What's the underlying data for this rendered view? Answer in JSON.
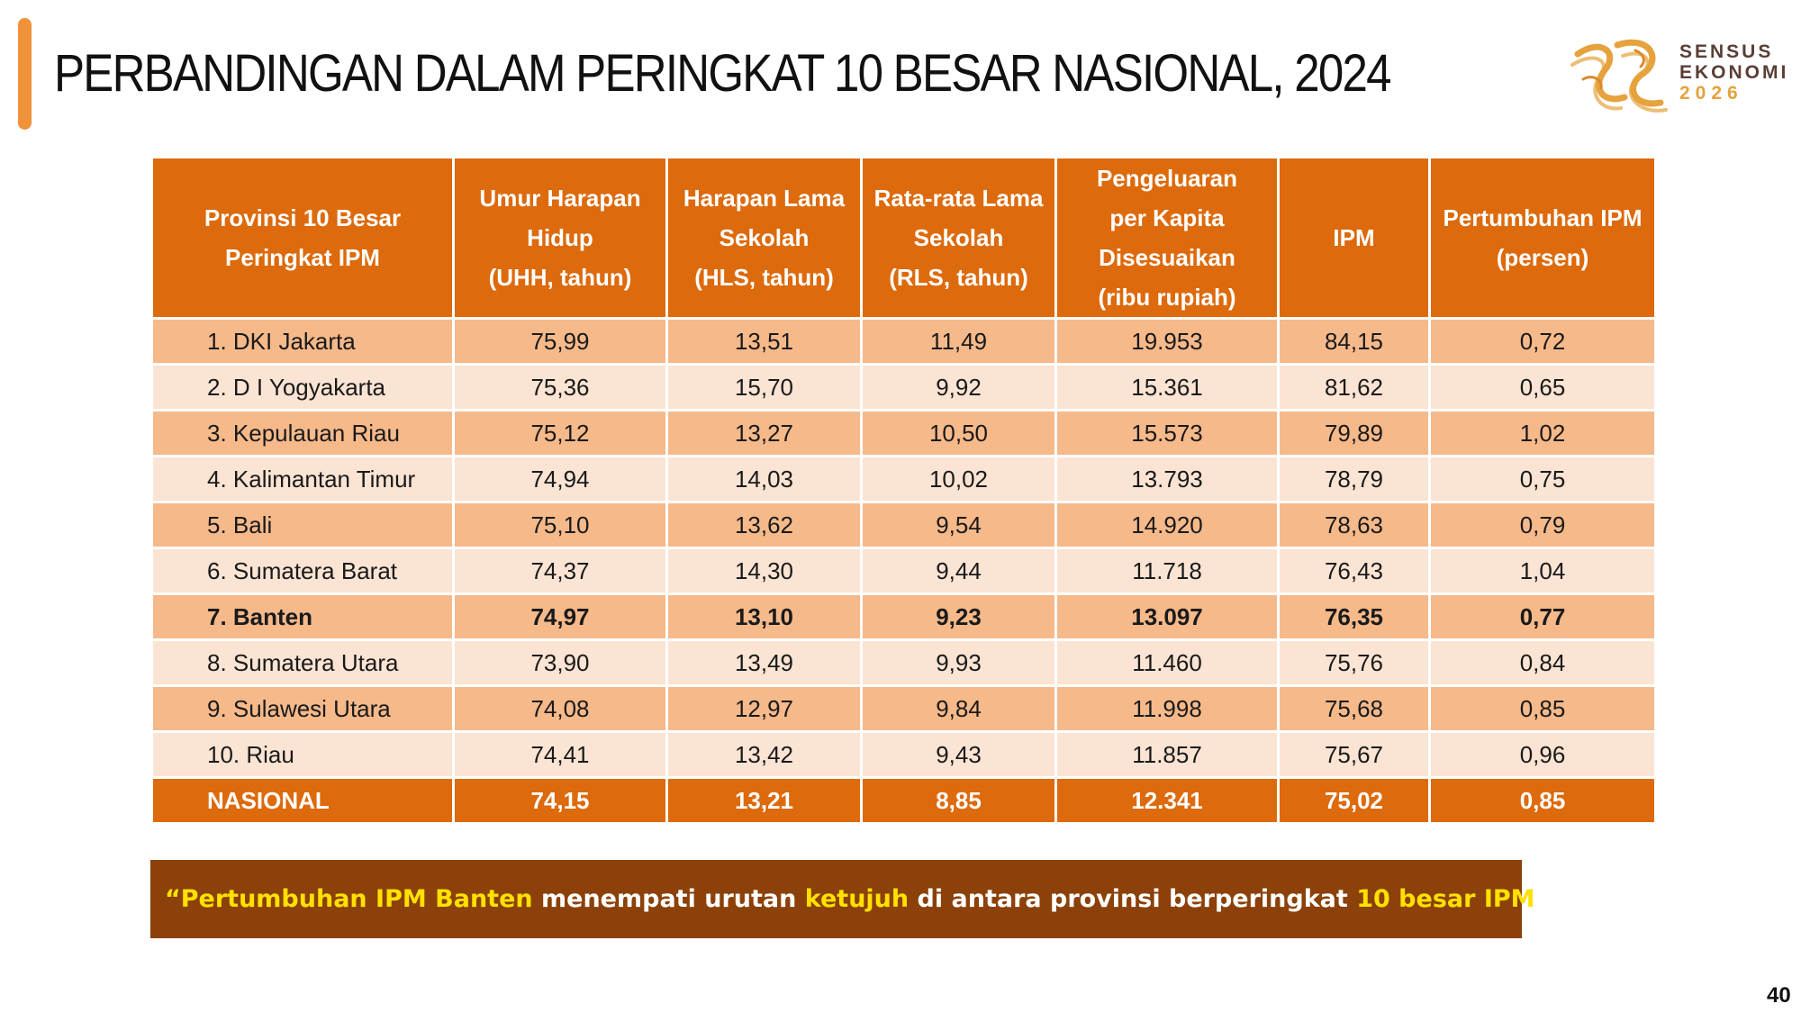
{
  "title": "PERBANDINGAN DALAM PERINGKAT 10 BESAR NASIONAL, 2024",
  "logo": {
    "line1": "SENSUS",
    "line2": "EKONOMI",
    "year": "2026",
    "colors": {
      "mark": "#e6a23c",
      "text": "#5a3e35",
      "year": "#e6a23c"
    }
  },
  "colors": {
    "header": "#dd6a0c",
    "row_dark": "#f6b98a",
    "row_light": "#fbe4d3",
    "quote_bg": "#8b4109",
    "highlight": "#ffe100",
    "accent_bar": "#f0923a"
  },
  "table": {
    "headers": [
      [
        "Provinsi 10 Besar",
        "Peringkat IPM"
      ],
      [
        "Umur Harapan",
        "Hidup",
        "(UHH, tahun)"
      ],
      [
        "Harapan Lama",
        "Sekolah",
        "(HLS, tahun)"
      ],
      [
        "Rata-rata Lama",
        "Sekolah",
        "(RLS, tahun)"
      ],
      [
        "Pengeluaran",
        "per Kapita",
        "Disesuaikan",
        "(ribu rupiah)"
      ],
      [
        "IPM"
      ],
      [
        "Pertumbuhan IPM",
        "(persen)"
      ]
    ],
    "rows": [
      [
        "1. DKI Jakarta",
        "75,99",
        "13,51",
        "11,49",
        "19.953",
        "84,15",
        "0,72"
      ],
      [
        "2. D I Yogyakarta",
        "75,36",
        "15,70",
        "9,92",
        "15.361",
        "81,62",
        "0,65"
      ],
      [
        "3. Kepulauan Riau",
        "75,12",
        "13,27",
        "10,50",
        "15.573",
        "79,89",
        "1,02"
      ],
      [
        "4. Kalimantan Timur",
        "74,94",
        "14,03",
        "10,02",
        "13.793",
        "78,79",
        "0,75"
      ],
      [
        "5. Bali",
        "75,10",
        "13,62",
        "9,54",
        "14.920",
        "78,63",
        "0,79"
      ],
      [
        "6. Sumatera Barat",
        "74,37",
        "14,30",
        "9,44",
        "11.718",
        "76,43",
        "1,04"
      ],
      [
        "7. Banten",
        "74,97",
        "13,10",
        "9,23",
        "13.097",
        "76,35",
        "0,77"
      ],
      [
        "8. Sumatera Utara",
        "73,90",
        "13,49",
        "9,93",
        "11.460",
        "75,76",
        "0,84"
      ],
      [
        "9. Sulawesi Utara",
        "74,08",
        "12,97",
        "9,84",
        "11.998",
        "75,68",
        "0,85"
      ],
      [
        "10. Riau",
        "74,41",
        "13,42",
        "9,43",
        "11.857",
        "75,67",
        "0,96"
      ]
    ],
    "highlight_row": 6,
    "total_row": [
      "NASIONAL",
      "74,15",
      "13,21",
      "8,85",
      "12.341",
      "75,02",
      "0,85"
    ]
  },
  "quote": {
    "open": "“",
    "hl1": "Pertumbuhan IPM Banten",
    "t1": " menempati urutan ",
    "hl2": "ketujuh",
    "t2": " di antara provinsi berperingkat ",
    "hl3": "10 besar IPM",
    "close": "“"
  },
  "page_number": "40"
}
